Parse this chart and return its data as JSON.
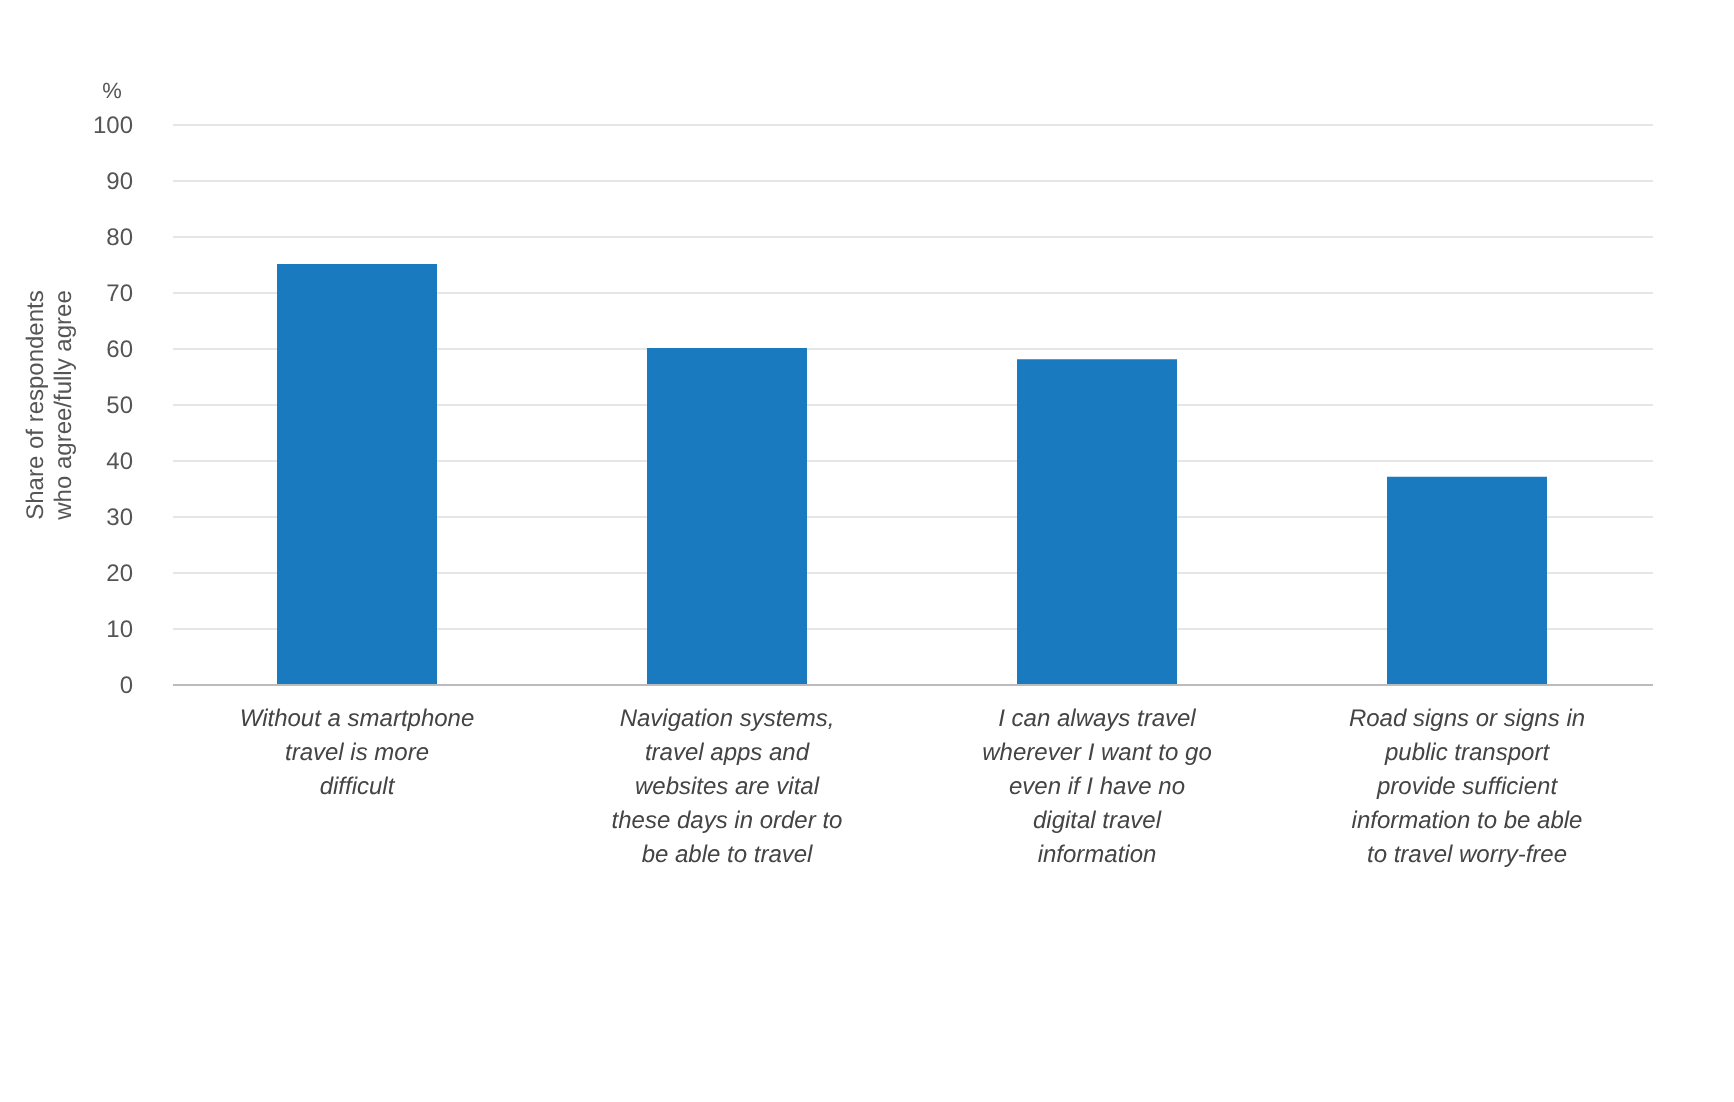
{
  "chart_data": {
    "type": "bar",
    "categories": [
      "Without a smartphone travel is more difficult",
      "Navigation systems, travel apps and websites are vital these days in order to be able to travel",
      "I can always travel wherever I want to go even if I have no digital travel information",
      "Road signs or signs in public transport provide sufficient information to be able to travel worry-free"
    ],
    "values": [
      75,
      60,
      58,
      37
    ],
    "color": "#1a7abf",
    "ylabel": "Share of respondents who agree/fully agree",
    "annotations": [
      "%"
    ],
    "ylim": [
      0,
      100
    ],
    "yticks": [
      0,
      10,
      20,
      30,
      40,
      50,
      60,
      70,
      80,
      90,
      100
    ],
    "grid": "y"
  }
}
